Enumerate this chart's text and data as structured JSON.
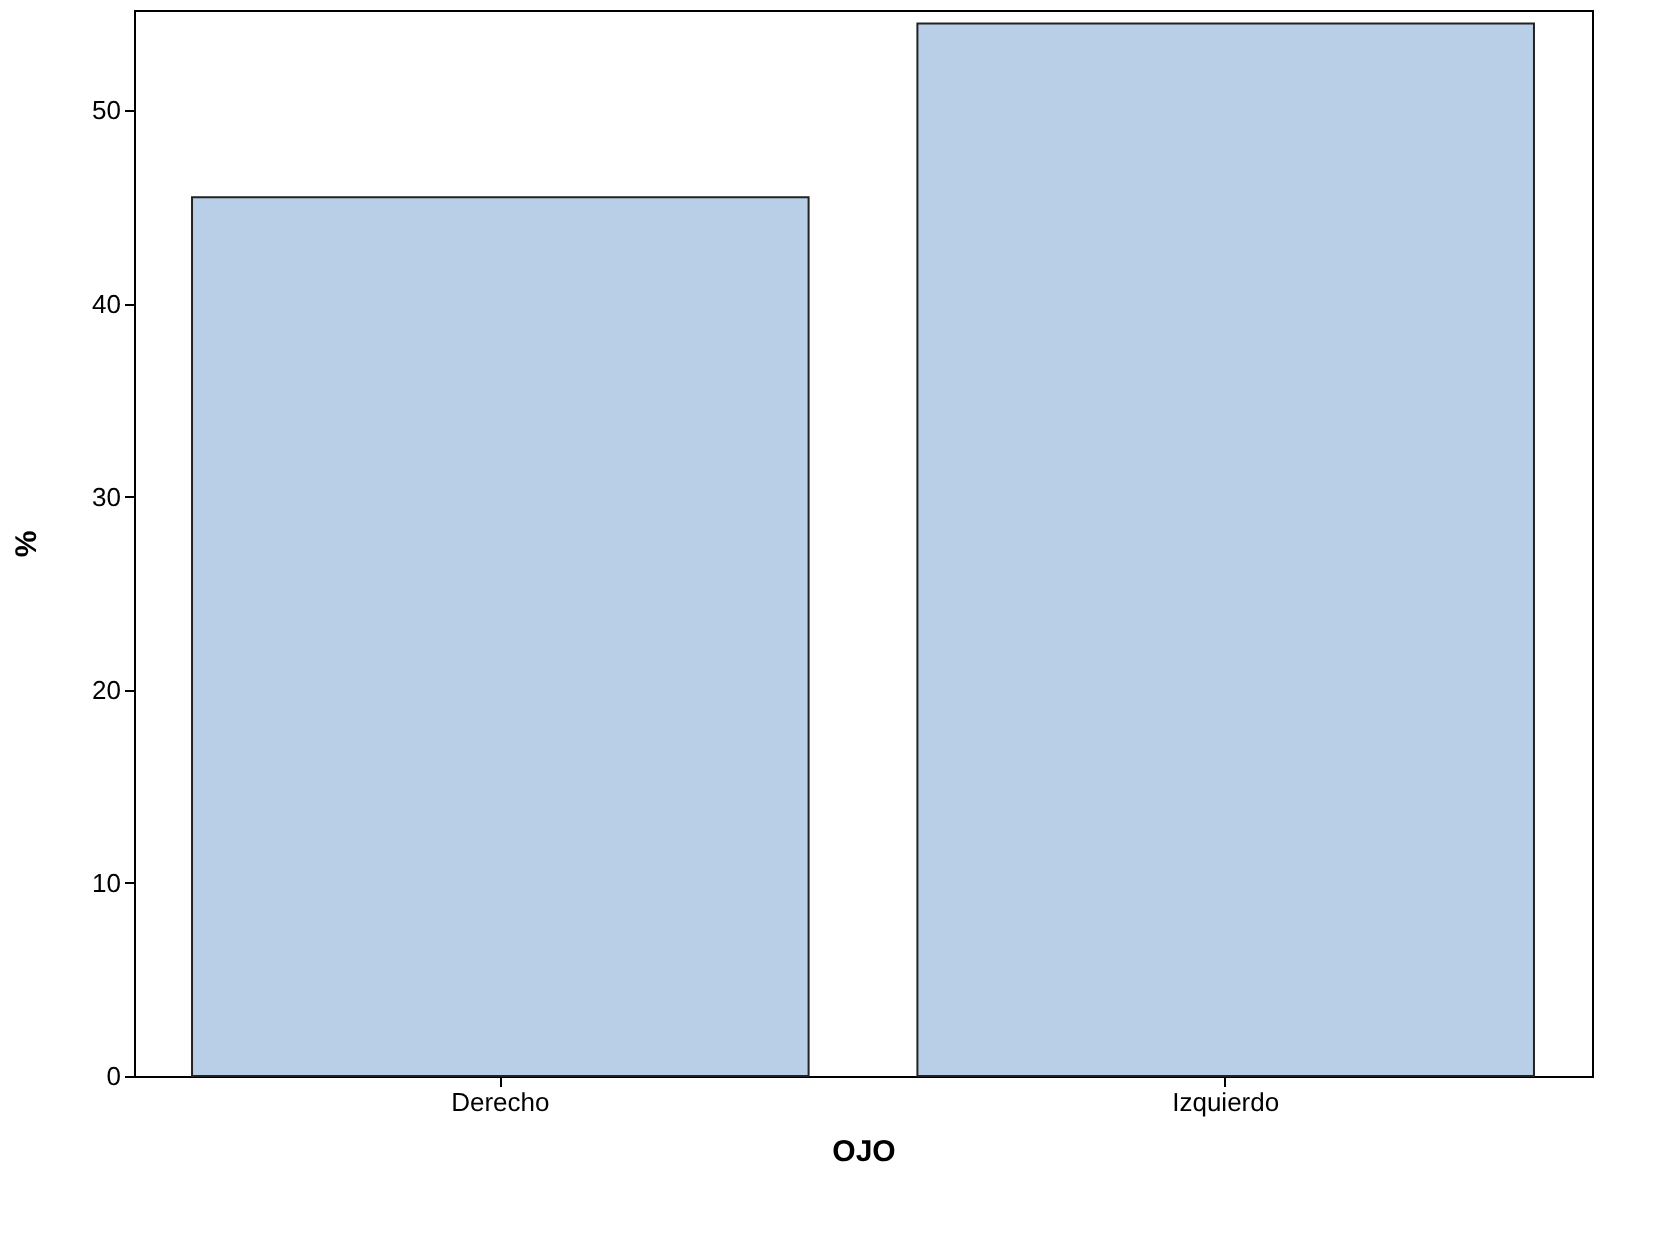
{
  "chart_data": {
    "type": "bar",
    "xlabel": "OJO",
    "ylabel": "%",
    "categories": [
      "Derecho",
      "Izquierdo"
    ],
    "values": [
      45.5,
      54.5
    ],
    "color": "#b9cfe7",
    "ylim": [
      0,
      55.2
    ],
    "yticks": [
      0,
      10,
      20,
      30,
      40,
      50
    ],
    "grid": false
  }
}
